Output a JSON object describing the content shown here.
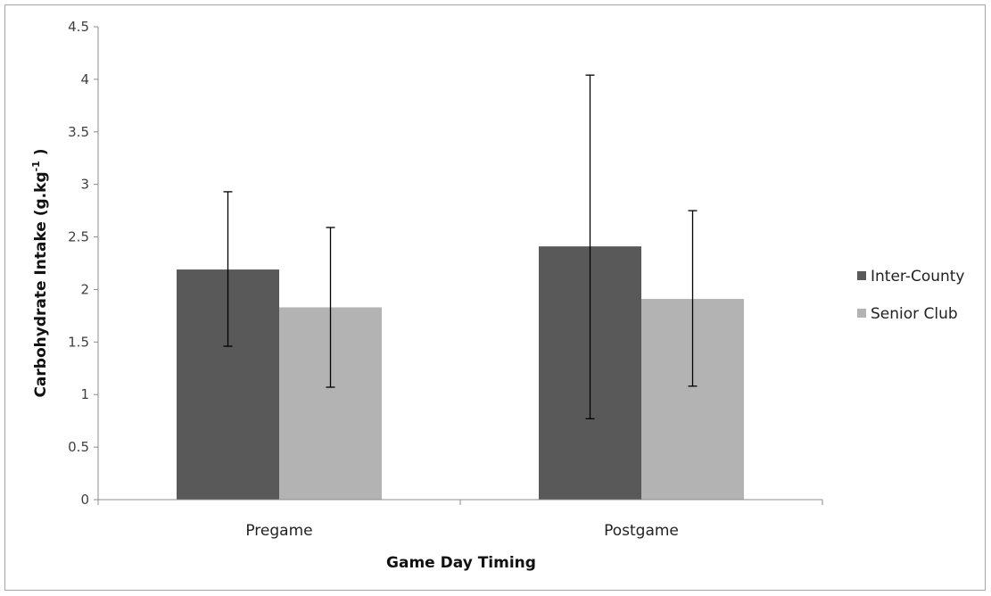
{
  "chart_data": {
    "type": "bar",
    "categories": [
      "Pregame",
      "Postgame"
    ],
    "series": [
      {
        "name": "Inter-County",
        "values": [
          2.19,
          2.41
        ],
        "error_low": [
          1.46,
          0.77
        ],
        "error_high": [
          2.93,
          4.04
        ],
        "color": "#595959"
      },
      {
        "name": "Senior Club",
        "values": [
          1.83,
          1.91
        ],
        "error_low": [
          1.07,
          1.08
        ],
        "error_high": [
          2.59,
          2.75
        ],
        "color": "#b3b3b3"
      }
    ],
    "xlabel": "Game Day Timing",
    "ylabel_main": "Carbohydrate Intake (g.kg",
    "ylabel_sup": "-1",
    "ylabel_end": " )",
    "ylim": [
      0,
      4.5
    ],
    "yticks": [
      "0",
      "0.5",
      "1",
      "1.5",
      "2",
      "2.5",
      "3",
      "3.5",
      "4",
      "4.5"
    ],
    "grid": false,
    "legend": "right"
  }
}
